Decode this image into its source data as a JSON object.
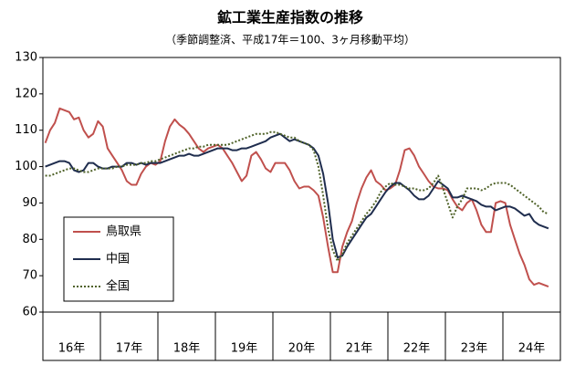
{
  "chart_data": {
    "type": "line",
    "title": "鉱工業生産指数の推移",
    "subtitle": "（季節調整済、平成17年＝100、3ヶ月移動平均）",
    "categories": [
      null,
      null,
      null,
      null,
      null,
      "16年",
      null,
      null,
      null,
      null,
      null,
      null,
      null,
      null,
      null,
      null,
      null,
      "17年",
      null,
      null,
      null,
      null,
      null,
      null,
      null,
      null,
      null,
      null,
      null,
      "18年",
      null,
      null,
      null,
      null,
      null,
      null,
      null,
      null,
      null,
      null,
      null,
      "19年",
      null,
      null,
      null,
      null,
      null,
      null,
      null,
      null,
      null,
      null,
      null,
      "20年",
      null,
      null,
      null,
      null,
      null,
      null,
      null,
      null,
      null,
      null,
      null,
      "21年",
      null,
      null,
      null,
      null,
      null,
      null,
      null,
      null,
      null,
      null,
      null,
      "22年",
      null,
      null,
      null,
      null,
      null,
      null,
      null,
      null,
      null,
      null,
      null,
      "23年",
      null,
      null,
      null,
      null,
      null,
      null,
      null,
      null,
      null,
      null,
      null,
      "24年",
      null,
      null,
      null,
      null,
      null,
      null
    ],
    "ylim": [
      60,
      130
    ],
    "yticks": [
      60,
      70,
      80,
      90,
      100,
      110,
      120,
      130
    ],
    "grid": false,
    "legend": "lower left",
    "series": [
      {
        "name": "鳥取県",
        "color": "#c0504d",
        "style": "solid",
        "values": [
          106.5,
          110,
          112,
          116,
          115.5,
          115,
          113,
          113.5,
          110,
          108,
          109,
          112.5,
          111,
          105,
          103,
          101,
          99,
          96,
          95,
          95,
          98,
          100,
          101,
          100.5,
          101.5,
          107,
          111,
          113,
          111.5,
          110.5,
          109,
          107,
          105,
          104,
          105,
          105.5,
          106,
          105,
          103,
          101,
          98.5,
          96,
          97.5,
          103,
          104,
          102,
          99.5,
          98.5,
          101,
          101,
          101,
          99,
          96,
          94,
          94.5,
          94.5,
          93.5,
          92,
          86,
          78,
          71,
          71,
          78,
          82,
          85,
          90,
          94,
          97,
          99,
          96,
          95,
          93.5,
          94,
          95,
          99,
          104.5,
          105,
          103,
          100,
          98,
          96,
          94.5,
          94,
          94,
          93.5,
          91,
          89,
          88,
          90,
          91,
          88,
          84,
          82,
          82,
          90,
          90.5,
          90,
          84,
          80,
          76,
          73,
          69,
          67.5,
          68,
          67.5,
          67,
          null,
          null
        ]
      },
      {
        "name": "中国",
        "color": "#1f2d4e",
        "style": "solid",
        "values": [
          100,
          100.5,
          101,
          101.5,
          101.5,
          101,
          99,
          98.5,
          99,
          101,
          101,
          100,
          99.5,
          99.5,
          100,
          100,
          100,
          101,
          101,
          100.5,
          101,
          100.5,
          101,
          101,
          101,
          101.5,
          102,
          102.5,
          103,
          103,
          103.5,
          103,
          103,
          103.5,
          104,
          104.5,
          105,
          105,
          105,
          104.5,
          104.5,
          105,
          105,
          105.5,
          106,
          106.5,
          107,
          108,
          108.5,
          109,
          108,
          107,
          107.5,
          107,
          106.5,
          106,
          105,
          103,
          98,
          90,
          80,
          75,
          75.5,
          78,
          80,
          82,
          84,
          86,
          87,
          89,
          91,
          93,
          94.5,
          95.5,
          95.5,
          94.5,
          93.5,
          92,
          91,
          91,
          92,
          94,
          96,
          95,
          94,
          91.5,
          91.5,
          92,
          91.5,
          91,
          90.5,
          89.5,
          89,
          89,
          88,
          88.5,
          89,
          89,
          88.5,
          87.5,
          86.5,
          87,
          85,
          84,
          83.5,
          83,
          null,
          null
        ]
      },
      {
        "name": "全国",
        "color": "#4f6228",
        "style": "dotted",
        "values": [
          97.5,
          97.5,
          98,
          98.5,
          99,
          99.5,
          99.5,
          99,
          98.5,
          98.5,
          99,
          99.5,
          99.5,
          99.5,
          99.5,
          100,
          100,
          100.5,
          100.5,
          100.5,
          101,
          101,
          101.5,
          101.5,
          102,
          102.5,
          103,
          103.5,
          104,
          104.5,
          105,
          105,
          105.5,
          105.5,
          106,
          106,
          106,
          106,
          106,
          106.5,
          107,
          107.5,
          108,
          108.5,
          109,
          109,
          109,
          109.5,
          109.5,
          109,
          108.5,
          108,
          108,
          107,
          106.5,
          106,
          104.5,
          100,
          92,
          83,
          77,
          74,
          76,
          79,
          81,
          83,
          85,
          87,
          88.5,
          90.5,
          93,
          94.5,
          95.5,
          95,
          95,
          94.5,
          94,
          94,
          93.5,
          93.5,
          94,
          95.5,
          97.5,
          94,
          90,
          86,
          89,
          91,
          94,
          94,
          94,
          93.5,
          94,
          95,
          95.5,
          95.5,
          95.5,
          95,
          94,
          93,
          92,
          91,
          90,
          89,
          87.5,
          87,
          null,
          null
        ]
      }
    ]
  }
}
